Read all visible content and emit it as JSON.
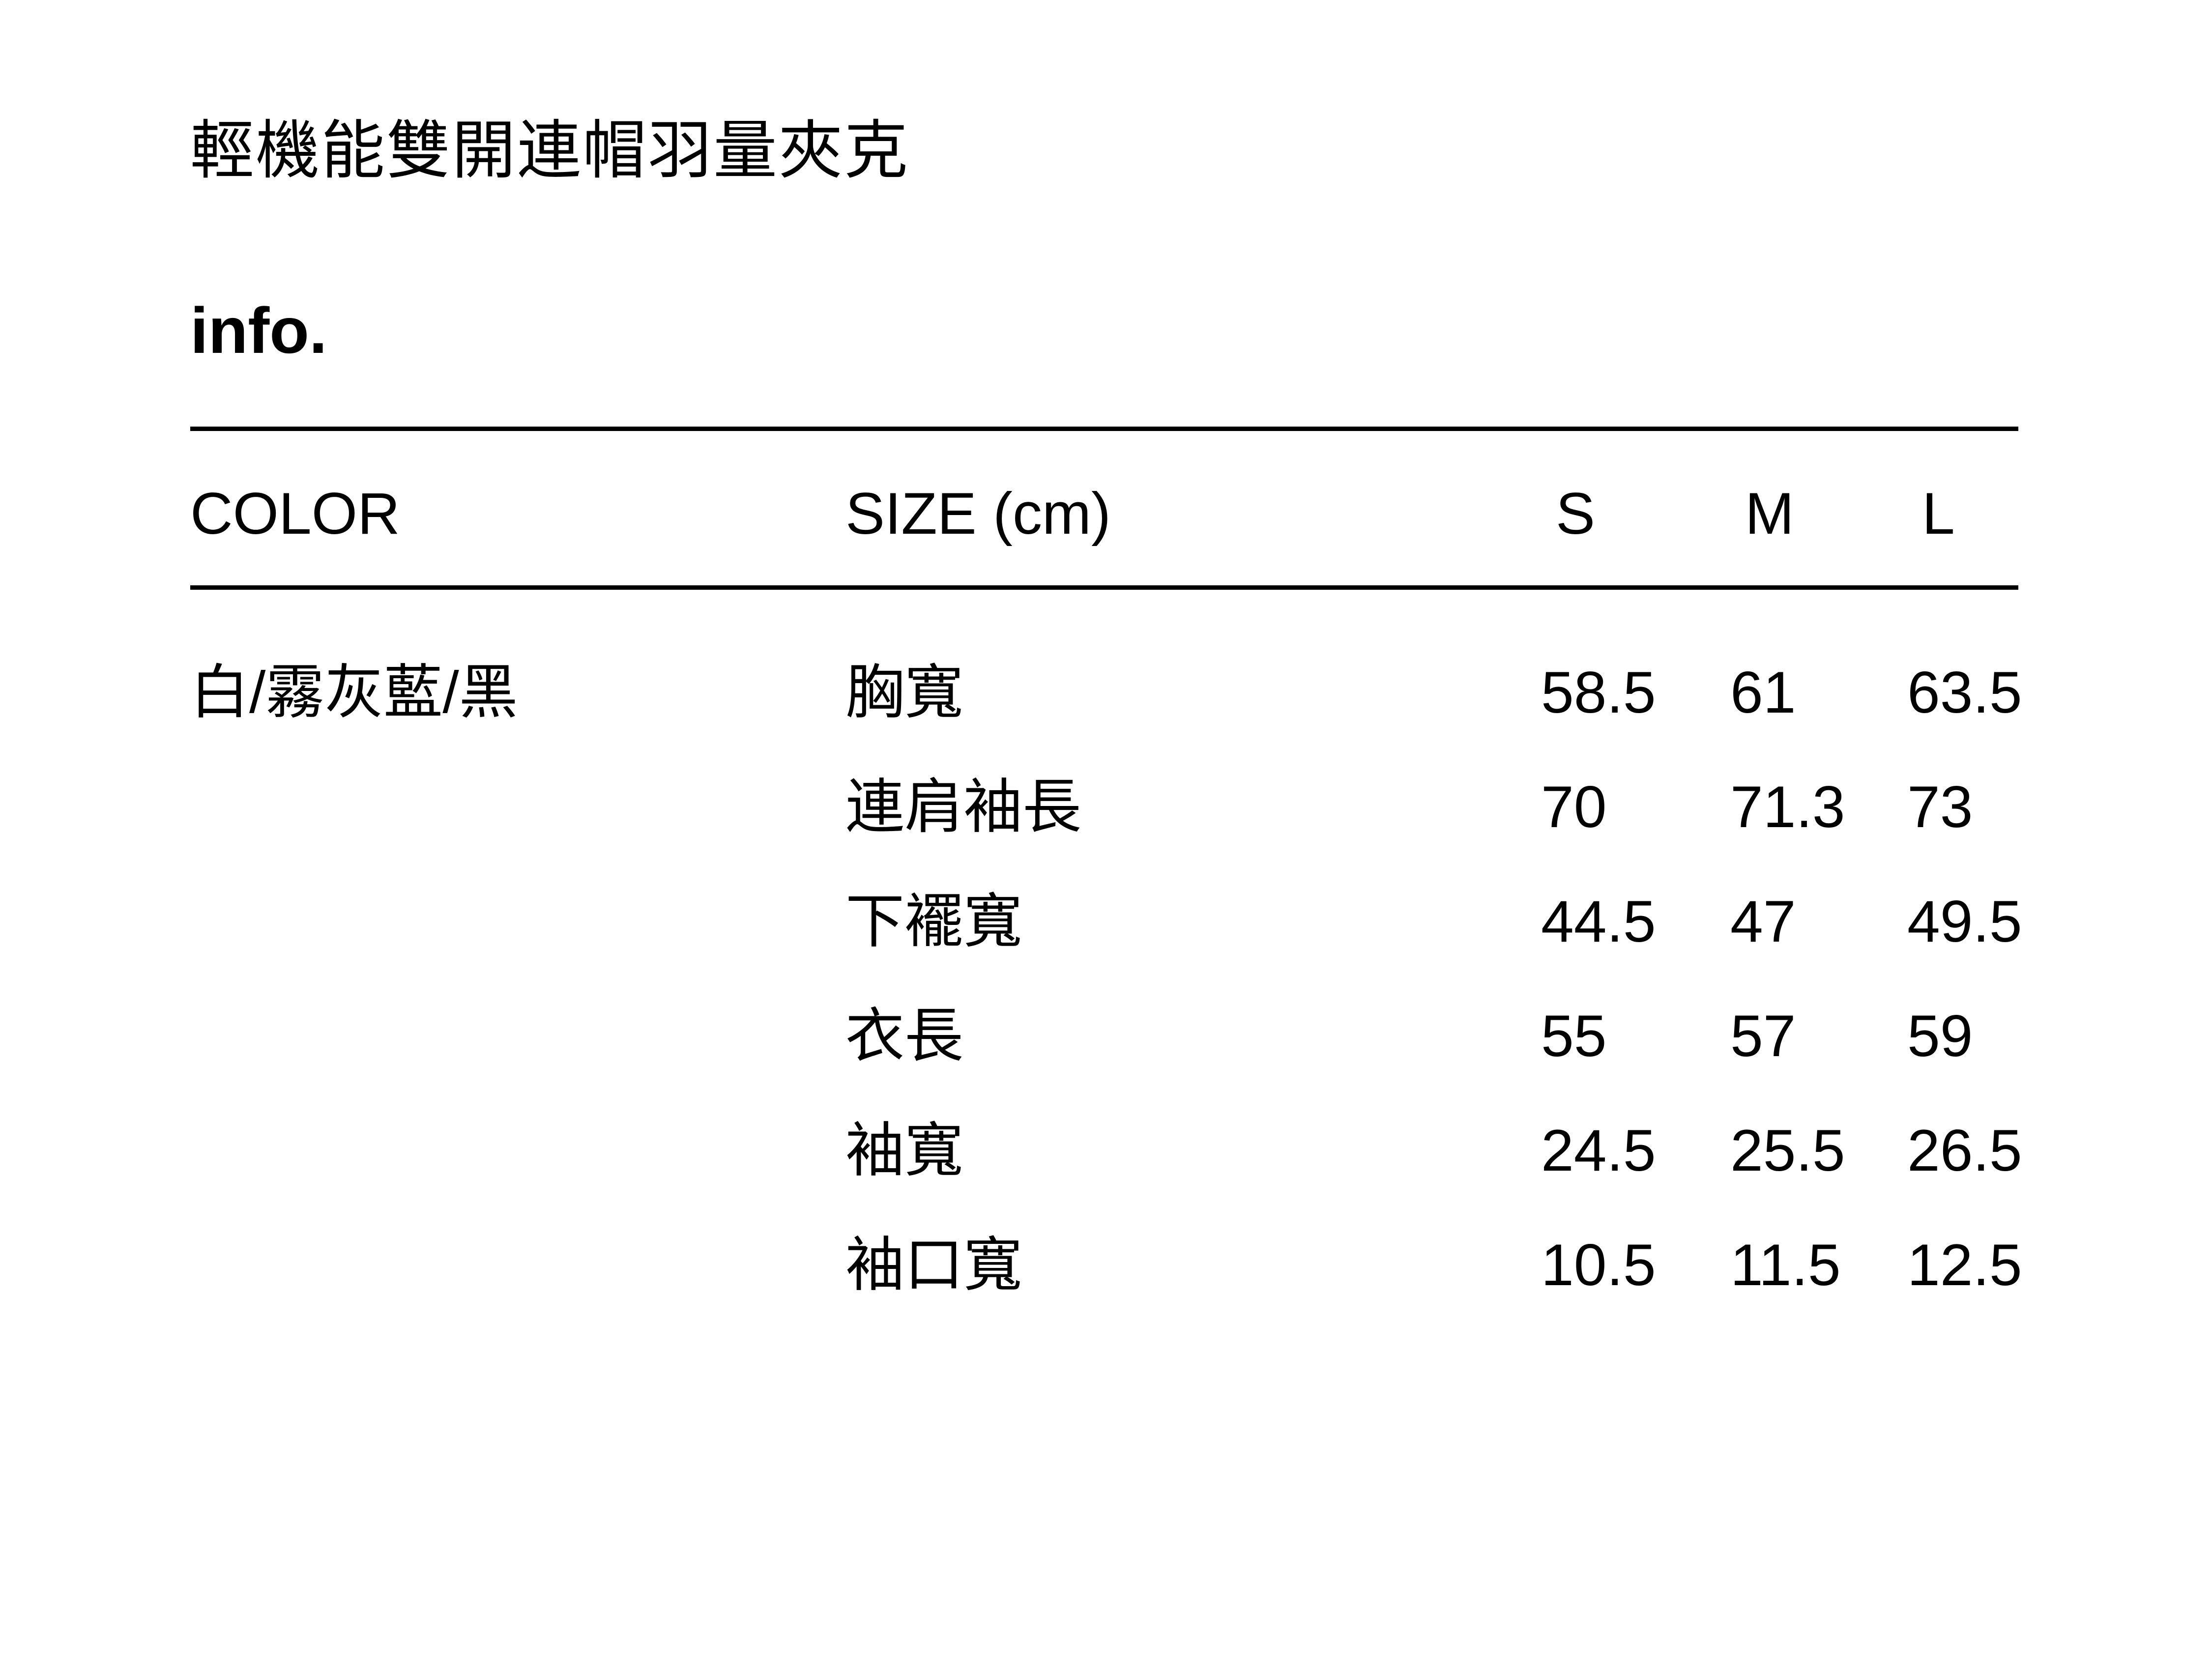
{
  "page": {
    "title": "輕機能雙開連帽羽量夾克",
    "section_heading": "info."
  },
  "table": {
    "headers": {
      "color": "COLOR",
      "size": "SIZE (cm)",
      "s": "S",
      "m": "M",
      "l": "L"
    },
    "color_value": "白/霧灰藍/黑",
    "rows": [
      {
        "label": "胸寬",
        "s": "58.5",
        "m": "61",
        "l": "63.5"
      },
      {
        "label": "連肩袖長",
        "s": "70",
        "m": "71.3",
        "l": "73"
      },
      {
        "label": "下襬寬",
        "s": "44.5",
        "m": "47",
        "l": "49.5"
      },
      {
        "label": "衣長",
        "s": "55",
        "m": "57",
        "l": "59"
      },
      {
        "label": "袖寬",
        "s": "24.5",
        "m": "25.5",
        "l": "26.5"
      },
      {
        "label": "袖口寬",
        "s": "10.5",
        "m": "11.5",
        "l": "12.5"
      }
    ]
  },
  "colors": {
    "text": "#000000",
    "background": "#ffffff",
    "rule": "#000000"
  }
}
